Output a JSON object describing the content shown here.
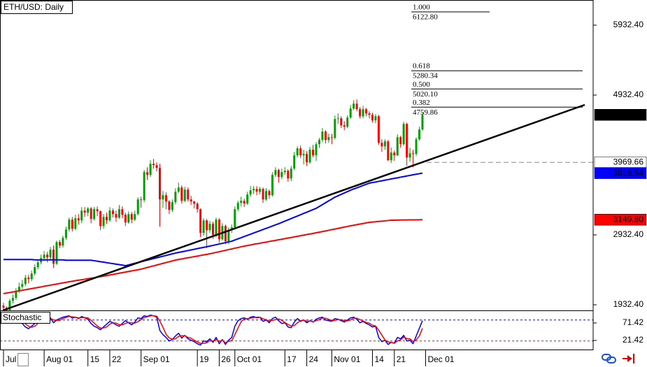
{
  "chart_data": {
    "type": "candlestick",
    "title": "ETH/USD: Daily",
    "categories": [
      "Jul",
      null,
      null,
      null,
      null,
      null,
      null,
      null,
      null,
      null,
      null,
      null,
      null,
      "Aug 01",
      null,
      null,
      null,
      null,
      null,
      null,
      null,
      null,
      null,
      null,
      null,
      null,
      null,
      "15",
      null,
      null,
      null,
      null,
      null,
      null,
      "22",
      null,
      null,
      null,
      null,
      null,
      null,
      null,
      null,
      null,
      "Sep 01",
      null,
      null,
      null,
      null,
      null,
      null,
      null,
      null,
      null,
      null,
      null,
      null,
      null,
      null,
      null,
      null,
      null,
      "19",
      null,
      null,
      null,
      null,
      null,
      null,
      "26",
      null,
      null,
      null,
      null,
      "Oct 01",
      null,
      null,
      null,
      null,
      null,
      null,
      null,
      null,
      null,
      null,
      null,
      null,
      null,
      null,
      null,
      "17",
      null,
      null,
      null,
      null,
      null,
      null,
      "24",
      null,
      null,
      null,
      null,
      null,
      null,
      null,
      "Nov 01",
      null,
      null,
      null,
      null,
      null,
      null,
      null,
      null,
      null,
      null,
      null,
      null,
      "14",
      null,
      null,
      null,
      null,
      null,
      null,
      "21",
      null,
      null,
      null,
      null,
      null,
      null,
      null,
      null,
      null,
      "Dec 01"
    ],
    "open": [
      1920,
      1890,
      1850,
      1990,
      2030,
      2130,
      2190,
      2230,
      2320,
      2300,
      2380,
      2470,
      2540,
      2600,
      2650,
      2610,
      2720,
      2520,
      2830,
      2780,
      2890,
      3010,
      3150,
      3020,
      3170,
      3140,
      3280,
      3250,
      3310,
      3160,
      3300,
      3270,
      3060,
      3190,
      3140,
      3280,
      3230,
      3180,
      3300,
      3220,
      3110,
      3230,
      3150,
      3230,
      3440,
      3430,
      3830,
      3790,
      3950,
      3930,
      3890,
      3440,
      3500,
      3410,
      3290,
      3400,
      3550,
      3610,
      3420,
      3580,
      3440,
      3410,
      3380,
      3300,
      2960,
      3140,
      3000,
      3090,
      2930,
      3150,
      2870,
      3060,
      2840,
      3000,
      3040,
      3300,
      3390,
      3420,
      3380,
      3510,
      3570,
      3590,
      3550,
      3590,
      3440,
      3560,
      3500,
      3790,
      3860,
      3760,
      3830,
      3850,
      3740,
      3880,
      4070,
      4170,
      4070,
      4090,
      3970,
      4150,
      4070,
      4230,
      4290,
      4410,
      4290,
      4330,
      4320,
      4590,
      4600,
      4500,
      4480,
      4610,
      4740,
      4810,
      4730,
      4630,
      4730,
      4670,
      4650,
      4570,
      4630,
      4250,
      4200,
      4270,
      4000,
      4110,
      4070,
      4330,
      4230,
      4520,
      4040,
      4100,
      4090,
      4300,
      4440,
      null
    ],
    "high": [
      1960,
      1910,
      2020,
      2080,
      2170,
      2250,
      2290,
      2360,
      2360,
      2420,
      2510,
      2570,
      2650,
      2700,
      2690,
      2760,
      2780,
      2850,
      2860,
      2920,
      3050,
      3180,
      3190,
      3220,
      3230,
      3330,
      3330,
      3330,
      3330,
      3330,
      3340,
      3280,
      3230,
      3250,
      3330,
      3310,
      3280,
      3360,
      3340,
      3250,
      3270,
      3260,
      3280,
      3470,
      3480,
      3860,
      3900,
      4000,
      4020,
      3970,
      3950,
      3560,
      3540,
      3430,
      3440,
      3600,
      3680,
      3640,
      3620,
      3610,
      3490,
      3420,
      3400,
      3310,
      3170,
      3160,
      3130,
      3120,
      3180,
      3170,
      3100,
      3080,
      3040,
      3080,
      3340,
      3420,
      3480,
      3450,
      3550,
      3630,
      3630,
      3630,
      3620,
      3610,
      3600,
      3580,
      3830,
      3900,
      3880,
      3880,
      3900,
      3870,
      3920,
      4120,
      4200,
      4210,
      4150,
      4130,
      4190,
      4220,
      4260,
      4320,
      4460,
      4430,
      4380,
      4380,
      4640,
      4670,
      4630,
      4560,
      4640,
      4790,
      4860,
      4870,
      4760,
      4780,
      4750,
      4700,
      4680,
      4660,
      4650,
      4300,
      4300,
      4290,
      4180,
      4140,
      4370,
      4350,
      4550,
      4540,
      4180,
      4150,
      4330,
      4480,
      4680,
      null
    ],
    "low": [
      1850,
      1800,
      1830,
      1950,
      2000,
      2100,
      2160,
      2200,
      2240,
      2270,
      2350,
      2440,
      2510,
      2560,
      2540,
      2580,
      2460,
      2500,
      2740,
      2750,
      2860,
      2980,
      2980,
      3000,
      3080,
      3100,
      3190,
      3200,
      3100,
      3140,
      3200,
      3000,
      3020,
      3090,
      3120,
      3180,
      3120,
      3160,
      3170,
      3060,
      3090,
      3100,
      3130,
      3210,
      3320,
      3400,
      3720,
      3760,
      3880,
      3840,
      3050,
      3320,
      3300,
      3230,
      3260,
      3370,
      3530,
      3380,
      3400,
      3410,
      3360,
      3310,
      3250,
      2900,
      2920,
      2740,
      2960,
      2880,
      2900,
      2820,
      2850,
      2800,
      2800,
      2960,
      3010,
      3270,
      3340,
      3330,
      3360,
      3480,
      3520,
      3500,
      3510,
      3390,
      3420,
      3450,
      3480,
      3760,
      3680,
      3730,
      3790,
      3690,
      3700,
      3860,
      4040,
      4030,
      3940,
      3920,
      3950,
      4040,
      3990,
      4180,
      4260,
      4240,
      4250,
      4230,
      4300,
      4520,
      4460,
      4430,
      4460,
      4590,
      4720,
      4700,
      4600,
      4600,
      4630,
      4600,
      4540,
      4530,
      4220,
      4120,
      4150,
      3990,
      3960,
      3990,
      4060,
      4180,
      4210,
      3920,
      3980,
      3900,
      4060,
      4280,
      4420,
      null
    ],
    "close": [
      1890,
      1850,
      1990,
      2030,
      2130,
      2190,
      2230,
      2320,
      2300,
      2380,
      2470,
      2540,
      2600,
      2650,
      2610,
      2720,
      2520,
      2830,
      2780,
      2890,
      3010,
      3150,
      3020,
      3170,
      3140,
      3280,
      3250,
      3310,
      3160,
      3300,
      3270,
      3060,
      3190,
      3140,
      3280,
      3230,
      3180,
      3300,
      3220,
      3110,
      3230,
      3150,
      3230,
      3440,
      3430,
      3830,
      3790,
      3950,
      3930,
      3890,
      3440,
      3500,
      3410,
      3290,
      3400,
      3550,
      3610,
      3420,
      3580,
      3440,
      3410,
      3380,
      3300,
      2960,
      3140,
      3000,
      3090,
      2930,
      3150,
      2870,
      3060,
      2840,
      3000,
      3040,
      3300,
      3390,
      3420,
      3380,
      3510,
      3570,
      3590,
      3550,
      3590,
      3440,
      3560,
      3500,
      3790,
      3860,
      3760,
      3830,
      3850,
      3740,
      3880,
      4070,
      4170,
      4070,
      4090,
      3970,
      4150,
      4070,
      4230,
      4290,
      4410,
      4290,
      4330,
      4320,
      4590,
      4600,
      4500,
      4480,
      4610,
      4740,
      4810,
      4730,
      4630,
      4730,
      4670,
      4650,
      4570,
      4630,
      4250,
      4200,
      4270,
      4000,
      4110,
      4070,
      4330,
      4230,
      4520,
      4040,
      4100,
      4090,
      4300,
      4440,
      4649.9,
      null
    ],
    "up_color": "#00a000",
    "down_color": "#ff0000",
    "ylim": [
      1842.4,
      6292.4
    ],
    "yticks": [
      {
        "value": 5932.4,
        "label": "5932.40"
      },
      {
        "value": 4932.4,
        "label": "4932.40"
      },
      {
        "value": 2932.4,
        "label": "2932.40"
      },
      {
        "value": 1932.4,
        "label": "1932.40"
      }
    ],
    "moving_averages": [
      {
        "color": "#0000ff",
        "values": [
          2580,
          2580,
          2580,
          2580,
          2580,
          2580,
          2580,
          2580,
          2580,
          2580,
          2575,
          2575,
          2575,
          2575,
          2575,
          2575,
          2575,
          2575,
          2575,
          2575,
          2570,
          2570,
          2570,
          2570,
          2570,
          2570,
          2570,
          2570,
          2570,
          2563,
          2556,
          2549,
          2542,
          2535,
          2528,
          2521,
          2514,
          2507,
          2500,
          2492,
          2503,
          2515,
          2526,
          2537,
          2548,
          2560,
          2571,
          2582,
          2593,
          2605,
          2616,
          2627,
          2638,
          2650,
          2661,
          2672,
          2681,
          2690,
          2699,
          2708,
          2717,
          2726,
          2736,
          2745,
          2754,
          2763,
          2772,
          2782,
          2792,
          2802,
          2812,
          2822,
          2832,
          2842,
          2859,
          2875,
          2892,
          2909,
          2925,
          2942,
          2959,
          2975,
          2992,
          3009,
          3025,
          3042,
          3059,
          3075,
          3092,
          3110,
          3129,
          3147,
          3165,
          3184,
          3202,
          3220,
          3239,
          3257,
          3275,
          3294,
          3312,
          3339,
          3365,
          3392,
          3419,
          3445,
          3472,
          3492,
          3512,
          3532,
          3552,
          3572,
          3589,
          3605,
          3622,
          3639,
          3655,
          3672,
          3681,
          3689,
          3698,
          3706,
          3715,
          3723,
          3732,
          3741,
          3749,
          3758,
          3766,
          3775,
          3783,
          3792,
          3800,
          3808,
          3816.54,
          null
        ]
      },
      {
        "color": "#ff0000",
        "values": [
          2092,
          2100,
          2108,
          2116,
          2124,
          2132,
          2140,
          2148,
          2156,
          2164,
          2172,
          2180,
          2188,
          2197,
          2205,
          2213,
          2221,
          2229,
          2238,
          2246,
          2254,
          2262,
          2269,
          2277,
          2284,
          2291,
          2298,
          2306,
          2313,
          2320,
          2328,
          2335,
          2342,
          2350,
          2359,
          2367,
          2375,
          2384,
          2392,
          2400,
          2409,
          2417,
          2425,
          2434,
          2442,
          2454,
          2466,
          2478,
          2489,
          2501,
          2513,
          2525,
          2537,
          2548,
          2560,
          2572,
          2580,
          2588,
          2597,
          2605,
          2613,
          2621,
          2629,
          2638,
          2646,
          2654,
          2662,
          2672,
          2682,
          2692,
          2702,
          2712,
          2722,
          2732,
          2742,
          2752,
          2762,
          2772,
          2780,
          2788,
          2797,
          2805,
          2813,
          2821,
          2829,
          2838,
          2846,
          2854,
          2862,
          2870,
          2879,
          2887,
          2895,
          2904,
          2912,
          2920,
          2929,
          2937,
          2945,
          2954,
          2962,
          2971,
          2980,
          2989,
          2998,
          3007,
          3016,
          3025,
          3035,
          3044,
          3053,
          3062,
          3070,
          3079,
          3087,
          3095,
          3104,
          3112,
          3116,
          3120,
          3125,
          3129,
          3133,
          3138,
          3142,
          3143,
          3144,
          3145,
          3146,
          3146,
          3147,
          3148,
          3148,
          3149,
          3149.8,
          null
        ]
      }
    ],
    "fibonacci": [
      {
        "ratio": {
          "value": 1,
          "label": "1.000"
        },
        "price": {
          "value": 6122.8,
          "label": "6122.80"
        }
      },
      {
        "ratio": 0.618,
        "price": {
          "value": 5280.34,
          "label": "5280.34"
        }
      },
      {
        "ratio": {
          "value": 0.5,
          "label": "0.500"
        },
        "price": {
          "value": 5020.1,
          "label": "5020.10"
        }
      },
      {
        "ratio": 0.382,
        "price": {
          "value": 4759.86,
          "label": "4759.86"
        }
      }
    ],
    "price_tags": [
      {
        "value": 4649.9,
        "label": "4649.90",
        "color": "#000000",
        "text_color": "#ffffff"
      },
      {
        "value": 3969.66,
        "label": "3969.66",
        "color": "#ffffff",
        "text_color": "#000000",
        "dashed_line": true
      },
      {
        "value": 3816.54,
        "label": "3816.54",
        "color": "#0000ff",
        "text_color": "#ffffff"
      },
      {
        "value": 3149.8,
        "label": "3149.80",
        "color": "#ff0000",
        "text_color": "#ffffff"
      }
    ],
    "stochastic": {
      "title": "Stochastic",
      "ylim": [
        -4.58,
        105.42
      ],
      "yticks": [
        71.42,
        21.42
      ],
      "levels": [
        80,
        20
      ],
      "level_colors": [
        "#0000ff",
        "#ff0000"
      ],
      "series": [
        {
          "color": "#0000ff",
          "values": [
            80,
            85,
            88,
            90,
            86,
            78,
            70,
            60,
            55,
            62,
            70,
            78,
            84,
            88,
            82,
            86,
            72,
            80,
            84,
            88,
            90,
            92,
            85,
            88,
            84,
            90,
            86,
            82,
            70,
            62,
            58,
            52,
            60,
            68,
            76,
            72,
            66,
            62,
            70,
            78,
            72,
            66,
            74,
            86,
            84,
            92,
            90,
            94,
            92,
            88,
            50,
            38,
            30,
            20,
            24,
            34,
            42,
            28,
            36,
            26,
            22,
            18,
            12,
            8,
            20,
            18,
            26,
            16,
            30,
            12,
            24,
            10,
            22,
            30,
            62,
            78,
            84,
            86,
            82,
            88,
            90,
            86,
            88,
            76,
            80,
            72,
            84,
            88,
            78,
            70,
            72,
            60,
            58,
            74,
            84,
            76,
            80,
            72,
            78,
            74,
            82,
            86,
            88,
            80,
            78,
            76,
            84,
            82,
            78,
            74,
            80,
            86,
            88,
            82,
            72,
            76,
            70,
            66,
            60,
            62,
            30,
            18,
            22,
            10,
            16,
            14,
            30,
            26,
            36,
            20,
            22,
            12,
            34,
            56,
            78,
            null
          ]
        },
        {
          "color": "#ff0000",
          "values": [
            82,
            83,
            84,
            88,
            88,
            85,
            78,
            69,
            62,
            59,
            62,
            70,
            77,
            83,
            85,
            85,
            80,
            79,
            79,
            84,
            87,
            90,
            89,
            88,
            86,
            87,
            87,
            86,
            79,
            71,
            63,
            57,
            57,
            60,
            68,
            72,
            71,
            67,
            66,
            70,
            73,
            72,
            71,
            75,
            81,
            87,
            89,
            92,
            92,
            91,
            77,
            59,
            39,
            29,
            25,
            26,
            33,
            35,
            35,
            30,
            28,
            22,
            17,
            13,
            13,
            15,
            21,
            20,
            24,
            19,
            22,
            15,
            19,
            21,
            38,
            57,
            75,
            83,
            84,
            85,
            87,
            88,
            88,
            83,
            81,
            76,
            79,
            81,
            83,
            79,
            73,
            67,
            63,
            64,
            72,
            78,
            80,
            76,
            77,
            75,
            78,
            81,
            85,
            85,
            82,
            78,
            79,
            81,
            81,
            78,
            77,
            80,
            85,
            85,
            81,
            77,
            73,
            71,
            65,
            63,
            51,
            37,
            23,
            17,
            16,
            13,
            20,
            23,
            31,
            27,
            26,
            18,
            23,
            34,
            56,
            null
          ]
        }
      ]
    }
  }
}
